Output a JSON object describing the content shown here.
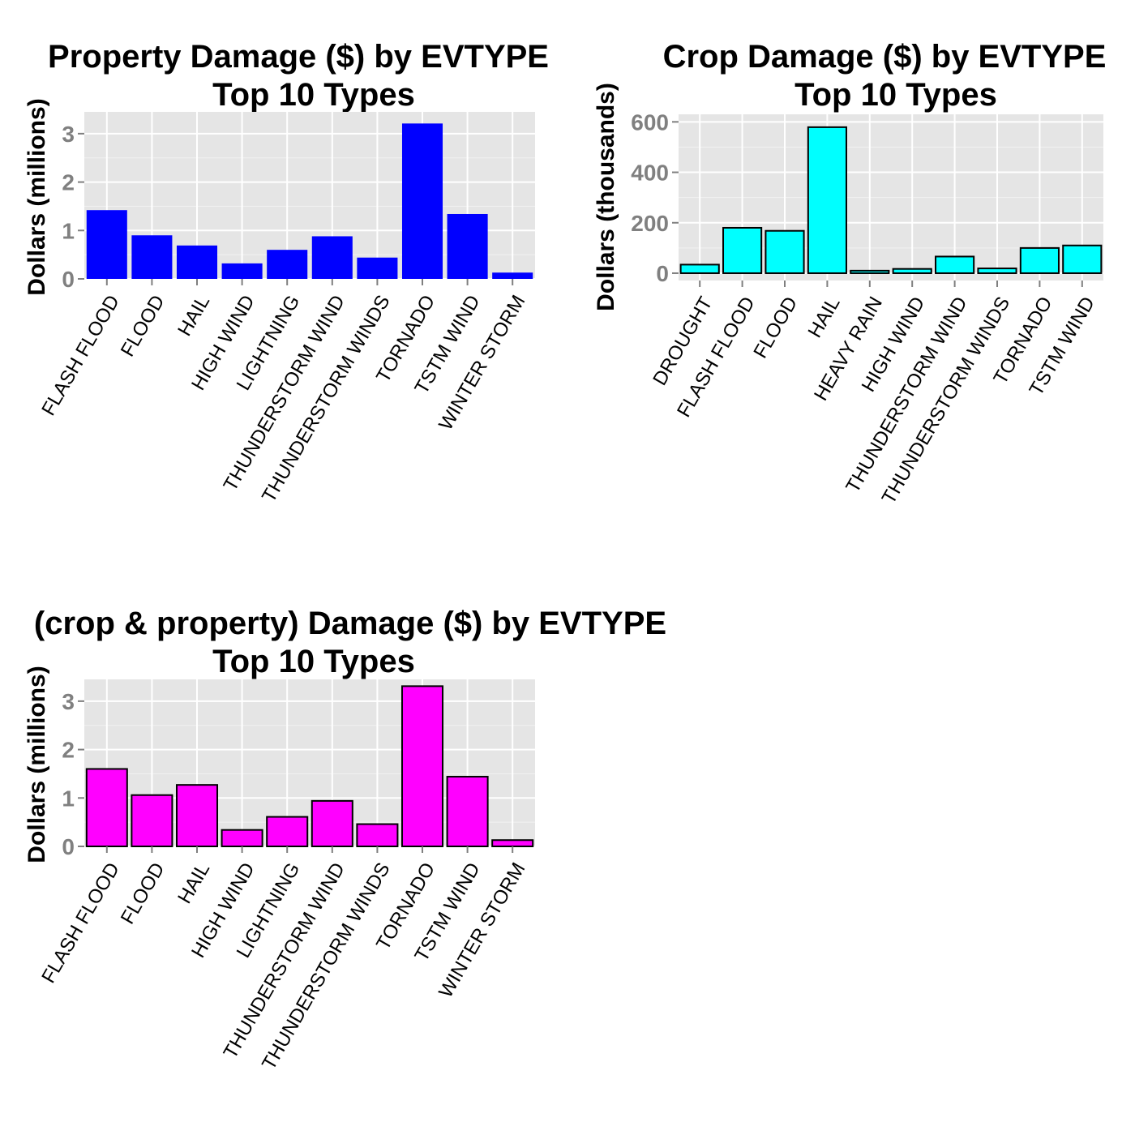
{
  "chart_data": [
    {
      "type": "bar",
      "title_line1": "Property Damage ($) by EVTYPE",
      "title_line2": "Top 10 Types",
      "xlabel": "",
      "ylabel": "Dollars (millions)",
      "categories": [
        "FLASH FLOOD",
        "FLOOD",
        "HAIL",
        "HIGH WIND",
        "LIGHTNING",
        "THUNDERSTORM WIND",
        "THUNDERSTORM WINDS",
        "TORNADO",
        "TSTM WIND",
        "WINTER STORM"
      ],
      "values": [
        1.42,
        0.9,
        0.69,
        0.32,
        0.6,
        0.88,
        0.44,
        3.21,
        1.34,
        0.13
      ],
      "ylim": [
        0,
        3.45
      ],
      "yticks": [
        0,
        1,
        2,
        3
      ],
      "ytick_labels": [
        "0",
        "1",
        "2",
        "3"
      ],
      "bar_color": "#0000FF",
      "bar_outline": "none",
      "grid": true
    },
    {
      "type": "bar",
      "title_line1": "Crop Damage ($) by EVTYPE",
      "title_line2": "Top 10 Types",
      "xlabel": "",
      "ylabel": "Dollars (thousands)",
      "categories": [
        "DROUGHT",
        "FLASH FLOOD",
        "FLOOD",
        "HAIL",
        "HEAVY RAIN",
        "HIGH WIND",
        "THUNDERSTORM WIND",
        "THUNDERSTORM WINDS",
        "TORNADO",
        "TSTM WIND"
      ],
      "values": [
        34,
        180,
        168,
        579,
        10,
        17,
        66,
        19,
        100,
        110
      ],
      "ylim": [
        -29,
        630
      ],
      "yticks": [
        0,
        200,
        400,
        600
      ],
      "ytick_labels": [
        "0",
        "200",
        "400",
        "600"
      ],
      "bar_color": "#00FFFF",
      "bar_outline": "#000000",
      "grid": true
    },
    {
      "type": "bar",
      "title_line1": "(crop & property) Damage ($) by EVTYPE",
      "title_line2": "Top 10 Types",
      "xlabel": "",
      "ylabel": "Dollars (millions)",
      "categories": [
        "FLASH FLOOD",
        "FLOOD",
        "HAIL",
        "HIGH WIND",
        "LIGHTNING",
        "THUNDERSTORM WIND",
        "THUNDERSTORM WINDS",
        "TORNADO",
        "TSTM WIND",
        "WINTER STORM"
      ],
      "values": [
        1.6,
        1.06,
        1.27,
        0.34,
        0.61,
        0.94,
        0.46,
        3.31,
        1.44,
        0.13
      ],
      "ylim": [
        0,
        3.45
      ],
      "yticks": [
        0,
        1,
        2,
        3
      ],
      "ytick_labels": [
        "0",
        "1",
        "2",
        "3"
      ],
      "bar_color": "#FF00FF",
      "bar_outline": "#000000",
      "grid": true
    }
  ]
}
